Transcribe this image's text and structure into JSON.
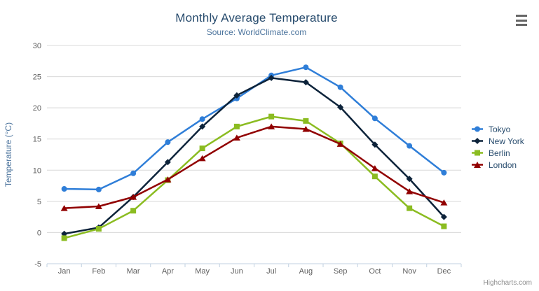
{
  "menu": {
    "tooltip": "chart context menu"
  },
  "credits": {
    "label": "Highcharts.com"
  },
  "palette": {
    "title_color": "#274b6d",
    "subtitle_color": "#4d759e",
    "axis_title_color": "#4d759e",
    "tick_label_color": "#606060",
    "gridline_color": "#d8d8d8",
    "axis_line_color": "#c0d0e0",
    "legend_text_color": "#274b6d"
  },
  "chart_data": {
    "type": "line",
    "title": "Monthly Average Temperature",
    "subtitle": "Source: WorldClimate.com",
    "xlabel": "",
    "ylabel": "Temperature (°C)",
    "categories": [
      "Jan",
      "Feb",
      "Mar",
      "Apr",
      "May",
      "Jun",
      "Jul",
      "Aug",
      "Sep",
      "Oct",
      "Nov",
      "Dec"
    ],
    "ylim": [
      -5,
      30
    ],
    "yticks": [
      -5,
      0,
      5,
      10,
      15,
      20,
      25,
      30
    ],
    "grid": true,
    "legend_position": "right",
    "series": [
      {
        "name": "Tokyo",
        "color": "#2f7ed8",
        "marker": "circle",
        "values": [
          7.0,
          6.9,
          9.5,
          14.5,
          18.2,
          21.5,
          25.2,
          26.5,
          23.3,
          18.3,
          13.9,
          9.6
        ]
      },
      {
        "name": "New York",
        "color": "#0d233a",
        "marker": "diamond",
        "values": [
          -0.2,
          0.8,
          5.7,
          11.3,
          17.0,
          22.0,
          24.8,
          24.1,
          20.1,
          14.1,
          8.6,
          2.5
        ]
      },
      {
        "name": "Berlin",
        "color": "#8bbc21",
        "marker": "square",
        "values": [
          -0.9,
          0.6,
          3.5,
          8.4,
          13.5,
          17.0,
          18.6,
          17.9,
          14.3,
          9.0,
          3.9,
          1.0
        ]
      },
      {
        "name": "London",
        "color": "#910000",
        "marker": "triangle",
        "values": [
          3.9,
          4.2,
          5.7,
          8.5,
          11.9,
          15.2,
          17.0,
          16.6,
          14.2,
          10.3,
          6.6,
          4.8
        ]
      }
    ]
  }
}
